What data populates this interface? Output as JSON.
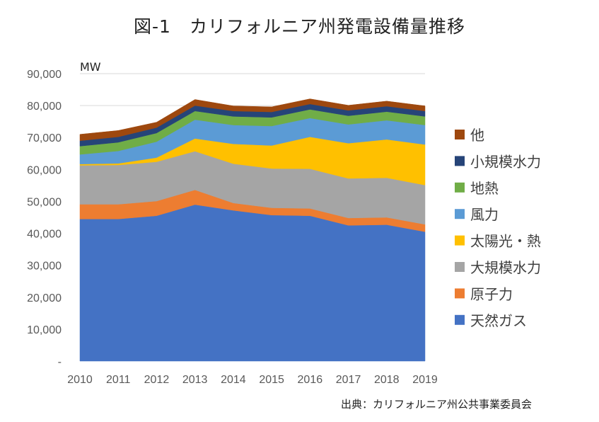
{
  "chart_data": {
    "type": "area",
    "stacked": true,
    "title": "図-1　カリフォルニア州発電設備量推移",
    "ylabel": "MW",
    "xlabel": "",
    "x": [
      "2010",
      "2011",
      "2012",
      "2013",
      "2014",
      "2015",
      "2016",
      "2017",
      "2018",
      "2019"
    ],
    "ylim": [
      0,
      90000
    ],
    "yticks": [
      {
        "v": 0,
        "label": "-"
      },
      {
        "v": 10000,
        "label": "10,000"
      },
      {
        "v": 20000,
        "label": "20,000"
      },
      {
        "v": 30000,
        "label": "30,000"
      },
      {
        "v": 40000,
        "label": "40,000"
      },
      {
        "v": 50000,
        "label": "50,000"
      },
      {
        "v": 60000,
        "label": "60,000"
      },
      {
        "v": 70000,
        "label": "70,000"
      },
      {
        "v": 80000,
        "label": "80,000"
      },
      {
        "v": 90000,
        "label": "90,000"
      }
    ],
    "grid": "horizontal",
    "legend_position": "right",
    "series": [
      {
        "name": "天然ガス",
        "color": "#4472C4",
        "values": [
          44500,
          44500,
          45500,
          49000,
          47200,
          45700,
          45500,
          42500,
          42700,
          40500
        ]
      },
      {
        "name": "原子力",
        "color": "#ED7D31",
        "values": [
          4600,
          4600,
          4600,
          4600,
          2300,
          2300,
          2300,
          2300,
          2300,
          2300
        ]
      },
      {
        "name": "大規模水力",
        "color": "#A5A5A5",
        "values": [
          12200,
          12300,
          12300,
          12100,
          12300,
          12300,
          12400,
          12400,
          12400,
          12300
        ]
      },
      {
        "name": "太陽光・熱",
        "color": "#FFC000",
        "values": [
          400,
          500,
          1300,
          4000,
          6200,
          7200,
          10000,
          11000,
          12000,
          12700
        ]
      },
      {
        "name": "風力",
        "color": "#5B9BD5",
        "values": [
          3000,
          3900,
          5000,
          5900,
          5900,
          6100,
          5900,
          5900,
          6000,
          6100
        ]
      },
      {
        "name": "地熱",
        "color": "#70AD47",
        "values": [
          2600,
          2700,
          2700,
          2700,
          2700,
          2700,
          2700,
          2700,
          2700,
          2700
        ]
      },
      {
        "name": "小規模水力",
        "color": "#264478",
        "values": [
          1700,
          1700,
          1700,
          1700,
          1700,
          1700,
          1700,
          1700,
          1700,
          1700
        ]
      },
      {
        "name": "他",
        "color": "#9E480E",
        "values": [
          2000,
          2000,
          1700,
          1900,
          1600,
          1600,
          1600,
          1600,
          1600,
          1600
        ]
      }
    ],
    "legend_order": [
      "他",
      "小規模水力",
      "地熱",
      "風力",
      "太陽光・熱",
      "大規模水力",
      "原子力",
      "天然ガス"
    ]
  },
  "source_note": "出典：カリフォルニア州公共事業委員会"
}
